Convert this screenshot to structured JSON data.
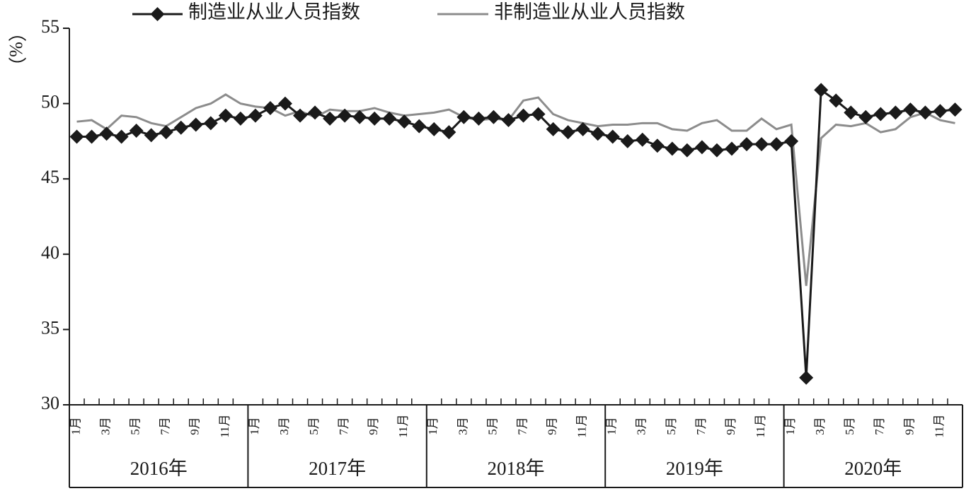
{
  "chart_data": {
    "type": "line",
    "y_label": "（%）",
    "categories": [
      "1月",
      null,
      "3月",
      null,
      "5月",
      null,
      "7月",
      null,
      "9月",
      null,
      "11月",
      null,
      "1月",
      null,
      "3月",
      null,
      "5月",
      null,
      "7月",
      null,
      "9月",
      null,
      "11月",
      null,
      "1月",
      null,
      "3月",
      null,
      "5月",
      null,
      "7月",
      null,
      "9月",
      null,
      "11月",
      null,
      "1月",
      null,
      "3月",
      null,
      "5月",
      null,
      "7月",
      null,
      "9月",
      null,
      "11月",
      null,
      "1月",
      null,
      "3月",
      null,
      "5月",
      null,
      "7月",
      null,
      "9月",
      null,
      "11月",
      null
    ],
    "year_labels": [
      "2016年",
      "2017年",
      "2018年",
      "2019年",
      "2020年"
    ],
    "ylim": [
      30,
      55
    ],
    "yticks": [
      30,
      35,
      40,
      45,
      50,
      55
    ],
    "series": [
      {
        "name": "制造业从业人员指数",
        "color": "#1a1a1a",
        "marker": "diamond",
        "values": [
          47.8,
          47.8,
          48.0,
          47.8,
          48.2,
          47.9,
          48.1,
          48.4,
          48.6,
          48.7,
          49.2,
          49.0,
          49.2,
          49.7,
          50.0,
          49.2,
          49.4,
          49.0,
          49.2,
          49.1,
          49.0,
          49.0,
          48.8,
          48.5,
          48.3,
          48.1,
          49.1,
          49.0,
          49.1,
          48.9,
          49.2,
          49.3,
          48.3,
          48.1,
          48.3,
          48.0,
          47.8,
          47.5,
          47.6,
          47.2,
          47.0,
          46.9,
          47.1,
          46.9,
          47.0,
          47.3,
          47.3,
          47.3,
          47.5,
          31.8,
          50.9,
          50.2,
          49.4,
          49.1,
          49.3,
          49.4,
          49.6,
          49.4,
          49.5,
          49.6
        ]
      },
      {
        "name": "非制造业从业人员指数",
        "color": "#8c8c8c",
        "marker": "none",
        "values": [
          48.8,
          48.9,
          48.3,
          49.2,
          49.1,
          48.7,
          48.5,
          49.1,
          49.7,
          50.0,
          50.6,
          50.0,
          49.8,
          49.7,
          49.2,
          49.5,
          49.1,
          49.6,
          49.5,
          49.5,
          49.7,
          49.4,
          49.2,
          49.3,
          49.4,
          49.6,
          49.1,
          48.9,
          49.0,
          48.9,
          50.2,
          50.4,
          49.3,
          48.9,
          48.7,
          48.5,
          48.6,
          48.6,
          48.7,
          48.7,
          48.3,
          48.2,
          48.7,
          48.9,
          48.2,
          48.2,
          49.0,
          48.3,
          48.6,
          37.9,
          47.7,
          48.6,
          48.5,
          48.7,
          48.1,
          48.3,
          49.1,
          49.4,
          48.9,
          48.7
        ]
      }
    ]
  }
}
